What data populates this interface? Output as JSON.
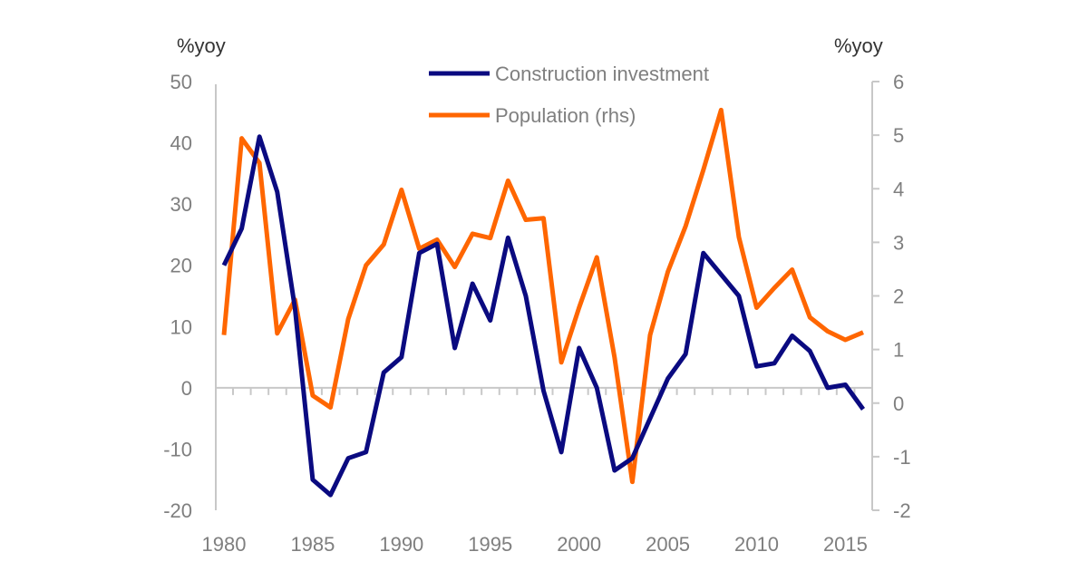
{
  "chart_data": {
    "type": "line",
    "left_unit": "%yoy",
    "right_unit": "%yoy",
    "x": [
      1980,
      1981,
      1982,
      1983,
      1984,
      1985,
      1986,
      1987,
      1988,
      1989,
      1990,
      1991,
      1992,
      1993,
      1994,
      1995,
      1996,
      1997,
      1998,
      1999,
      2000,
      2001,
      2002,
      2003,
      2004,
      2005,
      2006,
      2007,
      2008,
      2009,
      2010,
      2011,
      2012,
      2013,
      2014,
      2015,
      2016
    ],
    "x_ticks": [
      "1980",
      "1985",
      "1990",
      "1995",
      "2000",
      "2005",
      "2010",
      "2015"
    ],
    "y_left_ticks": [
      "50",
      "40",
      "30",
      "20",
      "10",
      "0",
      "-10",
      "-20"
    ],
    "y_right_ticks": [
      "6",
      "5",
      "4",
      "3",
      "2",
      "1",
      "0",
      "-1",
      "-2"
    ],
    "ylim_left": [
      -20,
      50
    ],
    "ylim_right": [
      -2,
      6
    ],
    "legend_placement": "top-center",
    "series": [
      {
        "name": "Construction investment",
        "axis": "left",
        "color": "#0a0a80",
        "values": [
          20,
          26,
          41,
          32,
          13,
          -15,
          -17.5,
          -11.5,
          -10.5,
          2.5,
          5,
          22,
          23.5,
          6.5,
          17,
          11,
          24.5,
          15,
          -0.5,
          -10.5,
          6.5,
          0,
          -13.5,
          -11.5,
          -5,
          1.5,
          5.5,
          22,
          18.5,
          15,
          3.5,
          4,
          8.5,
          6,
          0,
          0.5,
          -3.5
        ]
      },
      {
        "name": "Population (rhs)",
        "axis": "right",
        "color": "#ff6600",
        "values": [
          1.27,
          4.94,
          4.48,
          1.3,
          1.93,
          0.14,
          -0.08,
          1.57,
          2.57,
          2.96,
          3.98,
          2.88,
          3.05,
          2.54,
          3.16,
          3.08,
          4.15,
          3.42,
          3.45,
          0.76,
          1.78,
          2.72,
          0.85,
          -1.47,
          1.27,
          2.45,
          3.3,
          4.35,
          5.47,
          3.1,
          1.78,
          2.15,
          2.49,
          1.6,
          1.34,
          1.18,
          1.32
        ]
      }
    ]
  }
}
